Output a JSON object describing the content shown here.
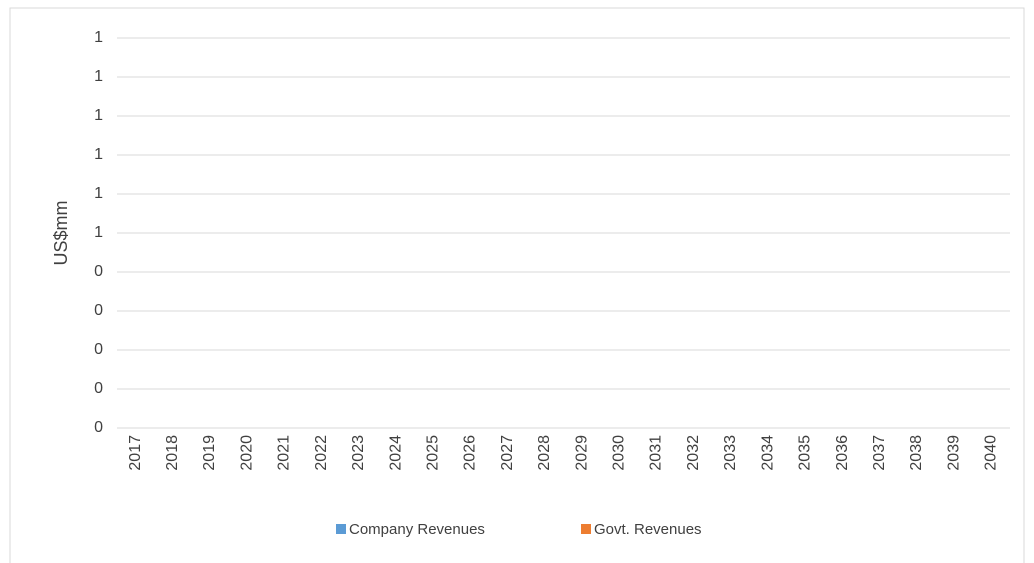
{
  "chart_data": {
    "type": "bar",
    "stacked": true,
    "y_label": "US$mm",
    "categories": [
      "2017",
      "2018",
      "2019",
      "2020",
      "2021",
      "2022",
      "2023",
      "2024",
      "2025",
      "2026",
      "2027",
      "2028",
      "2029",
      "2030",
      "2031",
      "2032",
      "2033",
      "2034",
      "2035",
      "2036",
      "2037",
      "2038",
      "2039",
      "2040"
    ],
    "series": [
      {
        "name": "Company Revenues",
        "color": "#5b9bd5",
        "values": [
          null,
          null,
          null,
          null,
          null,
          null,
          null,
          null,
          null,
          null,
          null,
          null,
          null,
          null,
          null,
          null,
          null,
          null,
          null,
          null,
          null,
          null,
          null,
          null
        ]
      },
      {
        "name": "Govt. Revenues",
        "color": "#ed7d31",
        "values": [
          null,
          null,
          null,
          null,
          null,
          null,
          null,
          null,
          null,
          null,
          null,
          null,
          null,
          null,
          null,
          null,
          null,
          null,
          null,
          null,
          null,
          null,
          null,
          null
        ]
      }
    ],
    "ylim": [
      0,
      1
    ],
    "yticks": [
      0,
      {
        "value": 0.1,
        "label": "0"
      },
      {
        "value": 0.2,
        "label": "0"
      },
      {
        "value": 0.3,
        "label": "0"
      },
      {
        "value": 0.4,
        "label": "0"
      },
      {
        "value": 0.5,
        "label": "1"
      },
      {
        "value": 0.6,
        "label": "1"
      },
      {
        "value": 0.7,
        "label": "1"
      },
      {
        "value": 0.8,
        "label": "1"
      },
      {
        "value": 0.9,
        "label": "1"
      },
      1
    ],
    "grid": true,
    "legend": "bottom"
  }
}
